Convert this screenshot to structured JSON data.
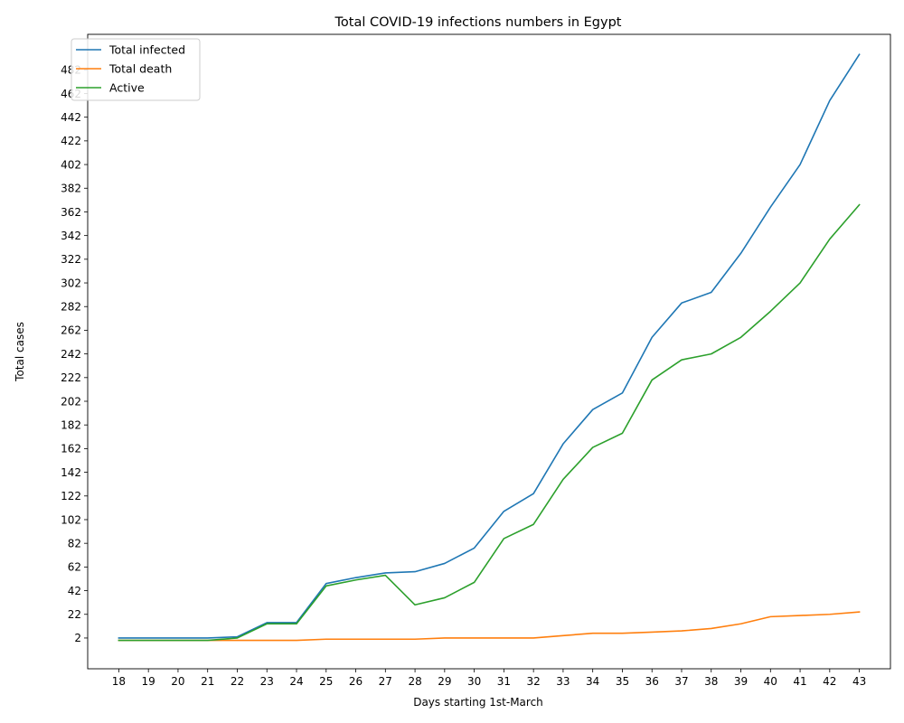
{
  "chart_data": {
    "type": "line",
    "title": "Total COVID-19 infections numbers in Egypt",
    "xlabel": "Days starting 1st-March",
    "ylabel": "Total cases",
    "x": [
      18,
      19,
      20,
      21,
      22,
      23,
      24,
      25,
      26,
      27,
      28,
      29,
      30,
      31,
      32,
      33,
      34,
      35,
      36,
      37,
      38,
      39,
      40,
      41,
      42,
      43
    ],
    "xlim": [
      16.95,
      44.05
    ],
    "ylim": [
      -24,
      512
    ],
    "yticks": [
      2,
      22,
      42,
      62,
      82,
      102,
      122,
      142,
      162,
      182,
      202,
      222,
      242,
      262,
      282,
      302,
      322,
      342,
      362,
      382,
      402,
      422,
      442,
      462,
      482
    ],
    "grid": false,
    "legend_position": "top-left",
    "series": [
      {
        "name": "Total infected",
        "color": "#1f77b4",
        "values": [
          2,
          2,
          2,
          2,
          3,
          15,
          15,
          48,
          53,
          57,
          58,
          65,
          78,
          109,
          124,
          166,
          195,
          209,
          256,
          285,
          294,
          327,
          366,
          402,
          456,
          495
        ]
      },
      {
        "name": "Total death",
        "color": "#ff7f0e",
        "values": [
          0,
          0,
          0,
          0,
          0,
          0,
          0,
          1,
          1,
          1,
          1,
          2,
          2,
          2,
          2,
          4,
          6,
          6,
          7,
          8,
          10,
          14,
          20,
          21,
          22,
          24
        ]
      },
      {
        "name": "Active",
        "color": "#2ca02c",
        "values": [
          0,
          0,
          0,
          0,
          2,
          14,
          14,
          46,
          51,
          55,
          30,
          36,
          49,
          86,
          98,
          136,
          163,
          175,
          220,
          237,
          242,
          256,
          278,
          302,
          339,
          368
        ]
      }
    ]
  }
}
